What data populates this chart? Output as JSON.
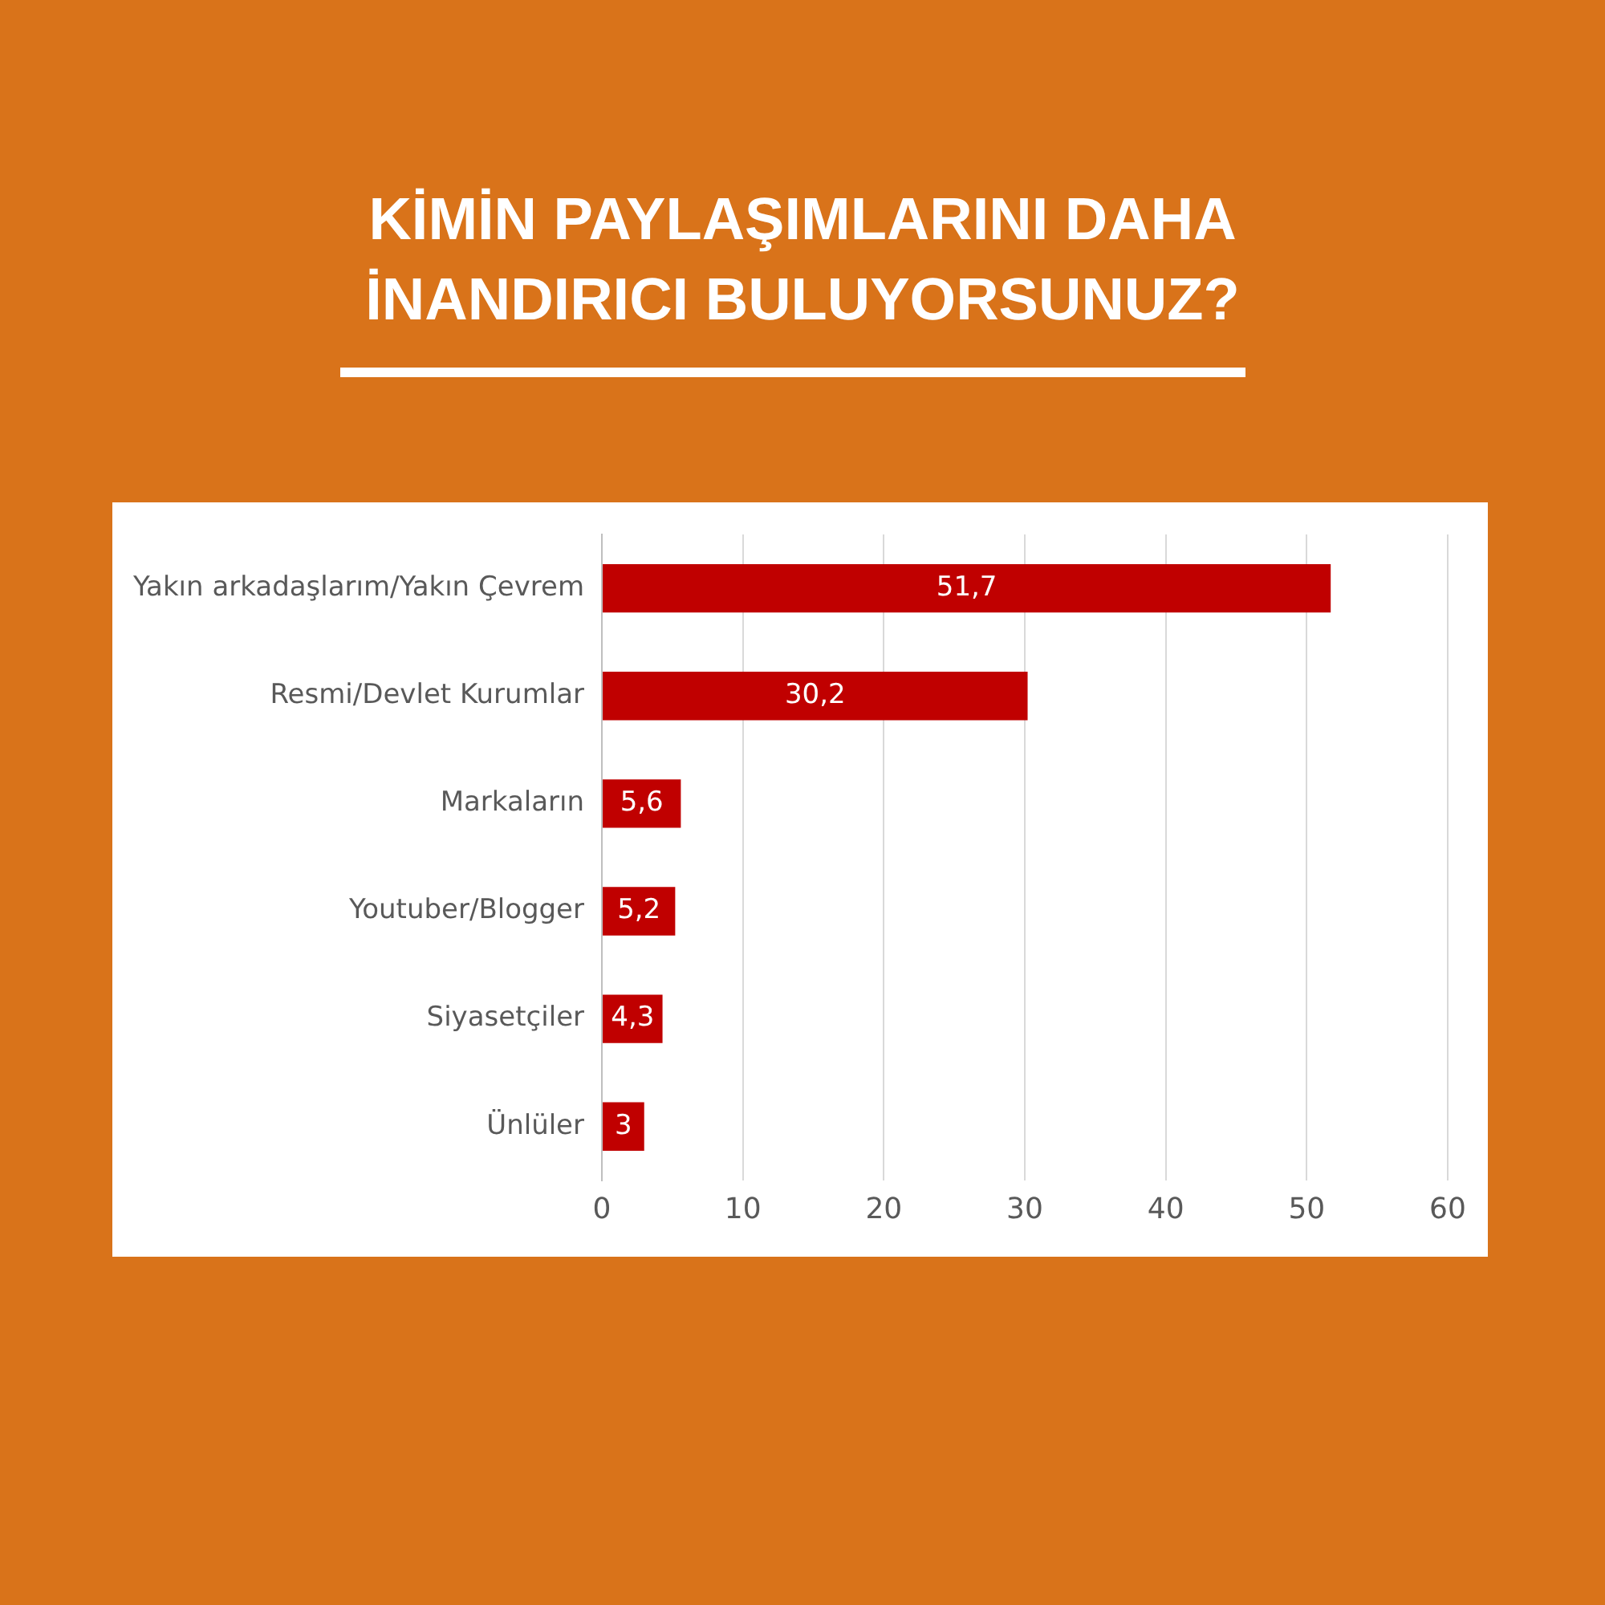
{
  "chart_data": {
    "type": "bar",
    "orientation": "horizontal",
    "title": "KİMİN PAYLAŞIMLARINI DAHA İNANDIRICI BULUYORSUNUZ?",
    "categories": [
      "Yakın arkadaşlarım/Yakın Çevrem",
      "Resmi/Devlet Kurumlar",
      "Markaların",
      "Youtuber/Blogger",
      "Siyasetçiler",
      "Ünlüler"
    ],
    "values": [
      51.7,
      30.2,
      5.6,
      5.2,
      4.3,
      3
    ],
    "value_labels": [
      "51,7",
      "30,2",
      "5,6",
      "5,2",
      "4,3",
      "3"
    ],
    "color": "#c00000",
    "xlim": [
      0,
      60
    ],
    "xticks": [
      0,
      10,
      20,
      30,
      40,
      50,
      60
    ],
    "grid": "x",
    "legend": false
  }
}
